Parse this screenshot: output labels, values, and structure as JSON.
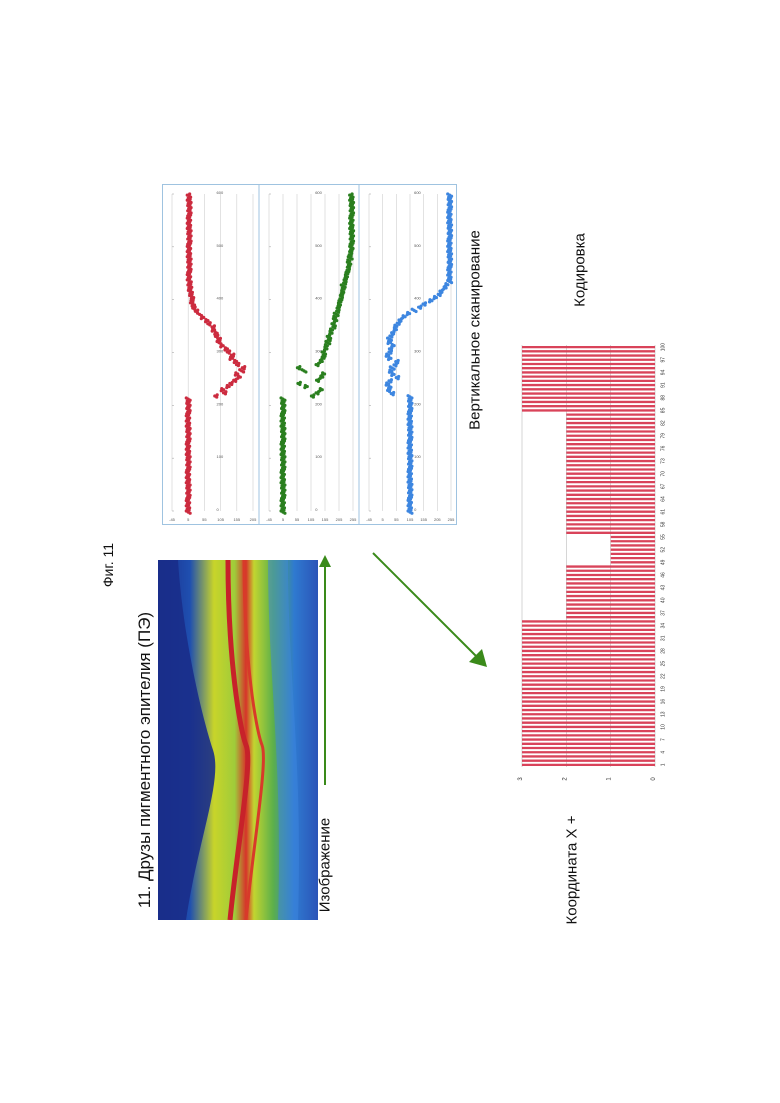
{
  "figure": {
    "number_label": "Фиг. 11",
    "title": "11. Друзы пигментного эпителия (ПЭ)",
    "image_label": "Изображение",
    "scan_label": "Вертикальное сканирование",
    "coding_label": "Кодировка",
    "coord_label": "Координата X +"
  },
  "colors": {
    "red_series": "#cc2b3f",
    "green_series": "#2a7f1f",
    "blue_series": "#3d86e0",
    "arrow": "#3a8a1a",
    "encoding_bar": "#d9435a",
    "panel_border": "#9fc3e0"
  },
  "chart_data": [
    {
      "type": "scatter",
      "series": [
        {
          "color": "red",
          "y_profile": [
            5,
            5,
            5,
            5,
            5,
            5,
            5,
            5,
            5,
            5,
            5,
            5,
            5,
            5,
            5,
            5,
            5,
            5,
            5,
            5,
            5,
            5,
            5,
            5,
            5,
            5,
            5,
            5,
            5,
            5,
            5,
            5,
            5,
            5,
            5,
            5,
            5,
            90,
            120,
            110,
            130,
            135,
            150,
            160,
            155,
            170,
            175,
            160,
            150,
            140,
            140,
            130,
            120,
            110,
            100,
            100,
            95,
            90,
            85,
            80,
            70,
            60,
            50,
            40,
            30,
            25,
            20,
            18,
            16,
            14,
            12,
            10,
            10,
            10,
            8,
            8,
            8,
            8,
            8,
            8,
            8,
            8,
            8,
            8,
            8,
            8,
            8,
            8,
            8,
            8,
            8,
            8,
            8,
            8,
            8,
            8,
            8,
            8,
            8,
            8,
            8,
            8
          ]
        }
      ],
      "x_ticks": [
        "0",
        "100",
        "200",
        "300",
        "400",
        "500",
        "600"
      ],
      "y_ticks": [
        "-45",
        "5",
        "55",
        "105",
        "155",
        "205"
      ]
    },
    {
      "type": "scatter",
      "series": [
        {
          "color": "green",
          "y_profile": [
            5,
            5,
            5,
            5,
            5,
            5,
            5,
            5,
            5,
            5,
            5,
            5,
            5,
            5,
            5,
            5,
            5,
            5,
            5,
            5,
            5,
            5,
            5,
            5,
            5,
            5,
            5,
            5,
            5,
            5,
            5,
            5,
            5,
            5,
            5,
            5,
            5,
            110,
            130,
            140,
            90,
            60,
            130,
            140,
            150,
            80,
            60,
            130,
            140,
            150,
            150,
            150,
            155,
            160,
            165,
            170,
            170,
            175,
            180,
            185,
            185,
            190,
            190,
            195,
            200,
            205,
            205,
            210,
            210,
            215,
            215,
            220,
            220,
            225,
            230,
            230,
            235,
            235,
            240,
            240,
            240,
            245,
            245,
            250,
            250,
            250,
            250,
            250,
            250,
            250,
            250,
            250,
            250,
            250,
            250,
            250,
            250,
            250,
            250,
            250,
            250,
            250
          ]
        }
      ],
      "x_ticks": [
        "0",
        "100",
        "200",
        "300",
        "400",
        "500",
        "600"
      ],
      "y_ticks": [
        "-45",
        "5",
        "55",
        "105",
        "155",
        "205",
        "255"
      ]
    },
    {
      "type": "scatter",
      "series": [
        {
          "color": "blue",
          "y_profile": [
            105,
            105,
            105,
            105,
            105,
            105,
            105,
            105,
            105,
            105,
            105,
            105,
            105,
            105,
            105,
            105,
            105,
            105,
            105,
            105,
            105,
            105,
            105,
            105,
            105,
            105,
            105,
            105,
            105,
            105,
            105,
            105,
            105,
            105,
            105,
            105,
            105,
            40,
            30,
            30,
            25,
            30,
            60,
            40,
            35,
            40,
            50,
            60,
            30,
            25,
            30,
            35,
            40,
            30,
            30,
            35,
            45,
            50,
            55,
            60,
            70,
            80,
            100,
            120,
            140,
            160,
            180,
            200,
            210,
            220,
            230,
            240,
            250,
            250,
            250,
            250,
            250,
            250,
            250,
            250,
            250,
            250,
            250,
            250,
            250,
            250,
            250,
            250,
            250,
            250,
            250,
            250,
            250,
            250,
            250,
            250,
            250,
            250,
            250,
            250
          ]
        }
      ],
      "x_ticks": [
        "0",
        "100",
        "200",
        "300",
        "400",
        "500",
        "600"
      ],
      "y_ticks": [
        "-45",
        "5",
        "55",
        "105",
        "155",
        "205",
        "255"
      ]
    },
    {
      "type": "bar",
      "categories": [
        1,
        2,
        3,
        4,
        5,
        6,
        7,
        8,
        9,
        10,
        11,
        12,
        13,
        14,
        15,
        16,
        17,
        18,
        19,
        20,
        21,
        22,
        23,
        24,
        25,
        26,
        27,
        28,
        29,
        30,
        31,
        32,
        33,
        34,
        35,
        36,
        37,
        38,
        39,
        40,
        41,
        42,
        43,
        44,
        45,
        46,
        47,
        48,
        49,
        50,
        51,
        52,
        53,
        54,
        55,
        56,
        57,
        58,
        59,
        60,
        61,
        62,
        63,
        64,
        65,
        66,
        67,
        68,
        69,
        70,
        71,
        72,
        73,
        74,
        75,
        76,
        77,
        78,
        79,
        80,
        81,
        82,
        83,
        84,
        85,
        86,
        87,
        88,
        89,
        90,
        91,
        92,
        93,
        94,
        95,
        96,
        97,
        98,
        99,
        100
      ],
      "values": [
        3,
        3,
        3,
        3,
        3,
        3,
        3,
        3,
        3,
        3,
        3,
        3,
        3,
        3,
        3,
        3,
        3,
        3,
        3,
        3,
        3,
        3,
        3,
        3,
        3,
        3,
        3,
        3,
        3,
        3,
        3,
        3,
        3,
        3,
        3,
        2,
        2,
        2,
        2,
        2,
        2,
        2,
        2,
        2,
        2,
        2,
        2,
        2,
        1,
        1,
        1,
        1,
        1,
        1,
        1,
        2,
        2,
        2,
        2,
        2,
        2,
        2,
        2,
        2,
        2,
        2,
        2,
        2,
        2,
        2,
        2,
        2,
        2,
        2,
        2,
        2,
        2,
        2,
        2,
        2,
        2,
        2,
        2,
        2,
        3,
        3,
        3,
        3,
        3,
        3,
        3,
        3,
        3,
        3,
        3,
        3,
        3,
        3,
        3,
        3
      ],
      "x_tick_labels": [
        "1",
        "4",
        "7",
        "10",
        "13",
        "16",
        "19",
        "22",
        "25",
        "28",
        "31",
        "34",
        "37",
        "40",
        "43",
        "46",
        "49",
        "52",
        "55",
        "58",
        "61",
        "64",
        "67",
        "70",
        "73",
        "76",
        "79",
        "82",
        "85",
        "88",
        "91",
        "94",
        "97",
        "100"
      ],
      "y_tick_labels": [
        "0",
        "1",
        "2",
        "3"
      ],
      "ylim": [
        0,
        3
      ]
    }
  ]
}
